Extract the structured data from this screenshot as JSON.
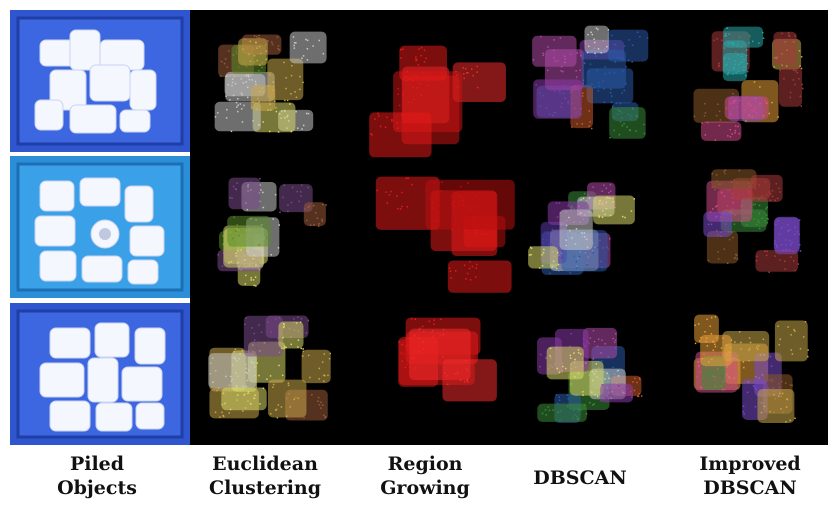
{
  "figure": {
    "columns": [
      {
        "label": "Piled\nObjects"
      },
      {
        "label": "Euclidean\nClustering"
      },
      {
        "label": "Region\nGrowing"
      },
      {
        "label": "DBSCAN"
      },
      {
        "label": "Improved\nDBSCAN"
      }
    ],
    "rows": 3,
    "colors": {
      "background": "#000000",
      "crate": "#2a4fc4",
      "object": "#ffffff",
      "region_red": "#e31a1a"
    }
  }
}
